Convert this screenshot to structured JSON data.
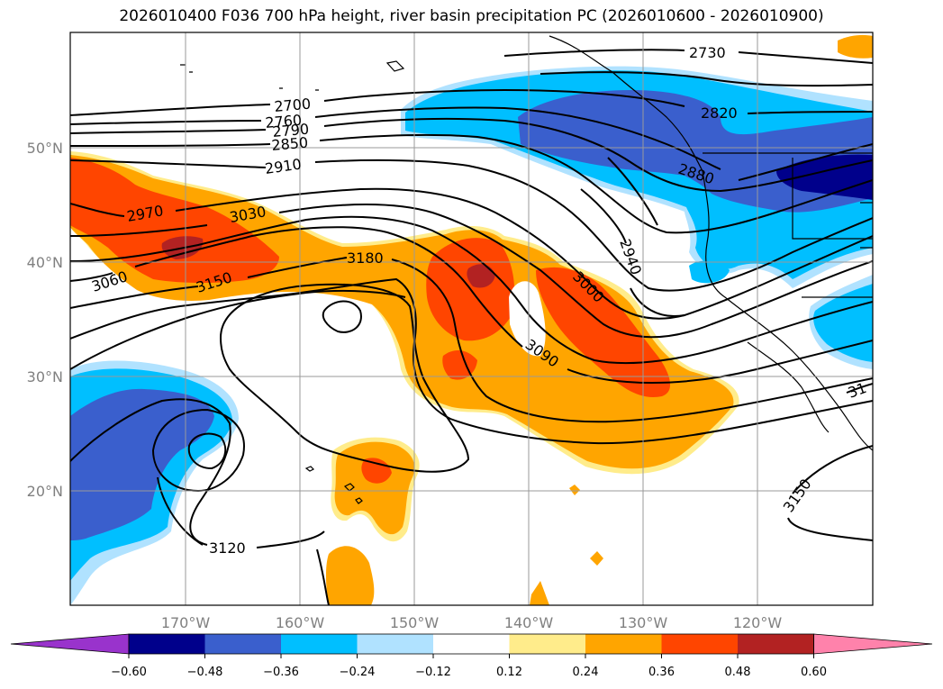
{
  "title": "2026010400 F036 700 hPa height, river basin precipitation PC (2026010600 - 2026010900)",
  "map": {
    "lon_labels": [
      "170°W",
      "160°W",
      "150°W",
      "140°W",
      "130°W",
      "120°W"
    ],
    "lat_labels": [
      "50°N",
      "40°N",
      "30°N",
      "20°N"
    ],
    "contour_labels": [
      {
        "text": "2730"
      },
      {
        "text": "2820"
      },
      {
        "text": "2880"
      },
      {
        "text": "2700"
      },
      {
        "text": "2760"
      },
      {
        "text": "2790"
      },
      {
        "text": "2850"
      },
      {
        "text": "2910"
      },
      {
        "text": "2970"
      },
      {
        "text": "3030"
      },
      {
        "text": "3060"
      },
      {
        "text": "3150"
      },
      {
        "text": "3180"
      },
      {
        "text": "2940"
      },
      {
        "text": "3000"
      },
      {
        "text": "3090"
      },
      {
        "text": "3120"
      },
      {
        "text": "3150"
      },
      {
        "text": "31"
      }
    ]
  },
  "colorbar": {
    "ticks": [
      "−0.60",
      "−0.48",
      "−0.36",
      "−0.24",
      "−0.12",
      "0.12",
      "0.24",
      "0.36",
      "0.48",
      "0.60"
    ],
    "colors": [
      "#9933cc",
      "#00008b",
      "#3a5fcd",
      "#00bfff",
      "#b0e2ff",
      "#ffffff",
      "#ffec8b",
      "#ffa500",
      "#ff4500",
      "#b22222",
      "#ff82ab"
    ]
  },
  "fill_colors": {
    "neg_light": "#b0e2ff",
    "neg_mid": "#00bfff",
    "neg_strong": "#3a5fcd",
    "neg_max": "#00008b",
    "pos_light": "#ffec8b",
    "pos_mid": "#ffa500",
    "pos_strong": "#ff4500",
    "pos_max": "#b22222"
  }
}
